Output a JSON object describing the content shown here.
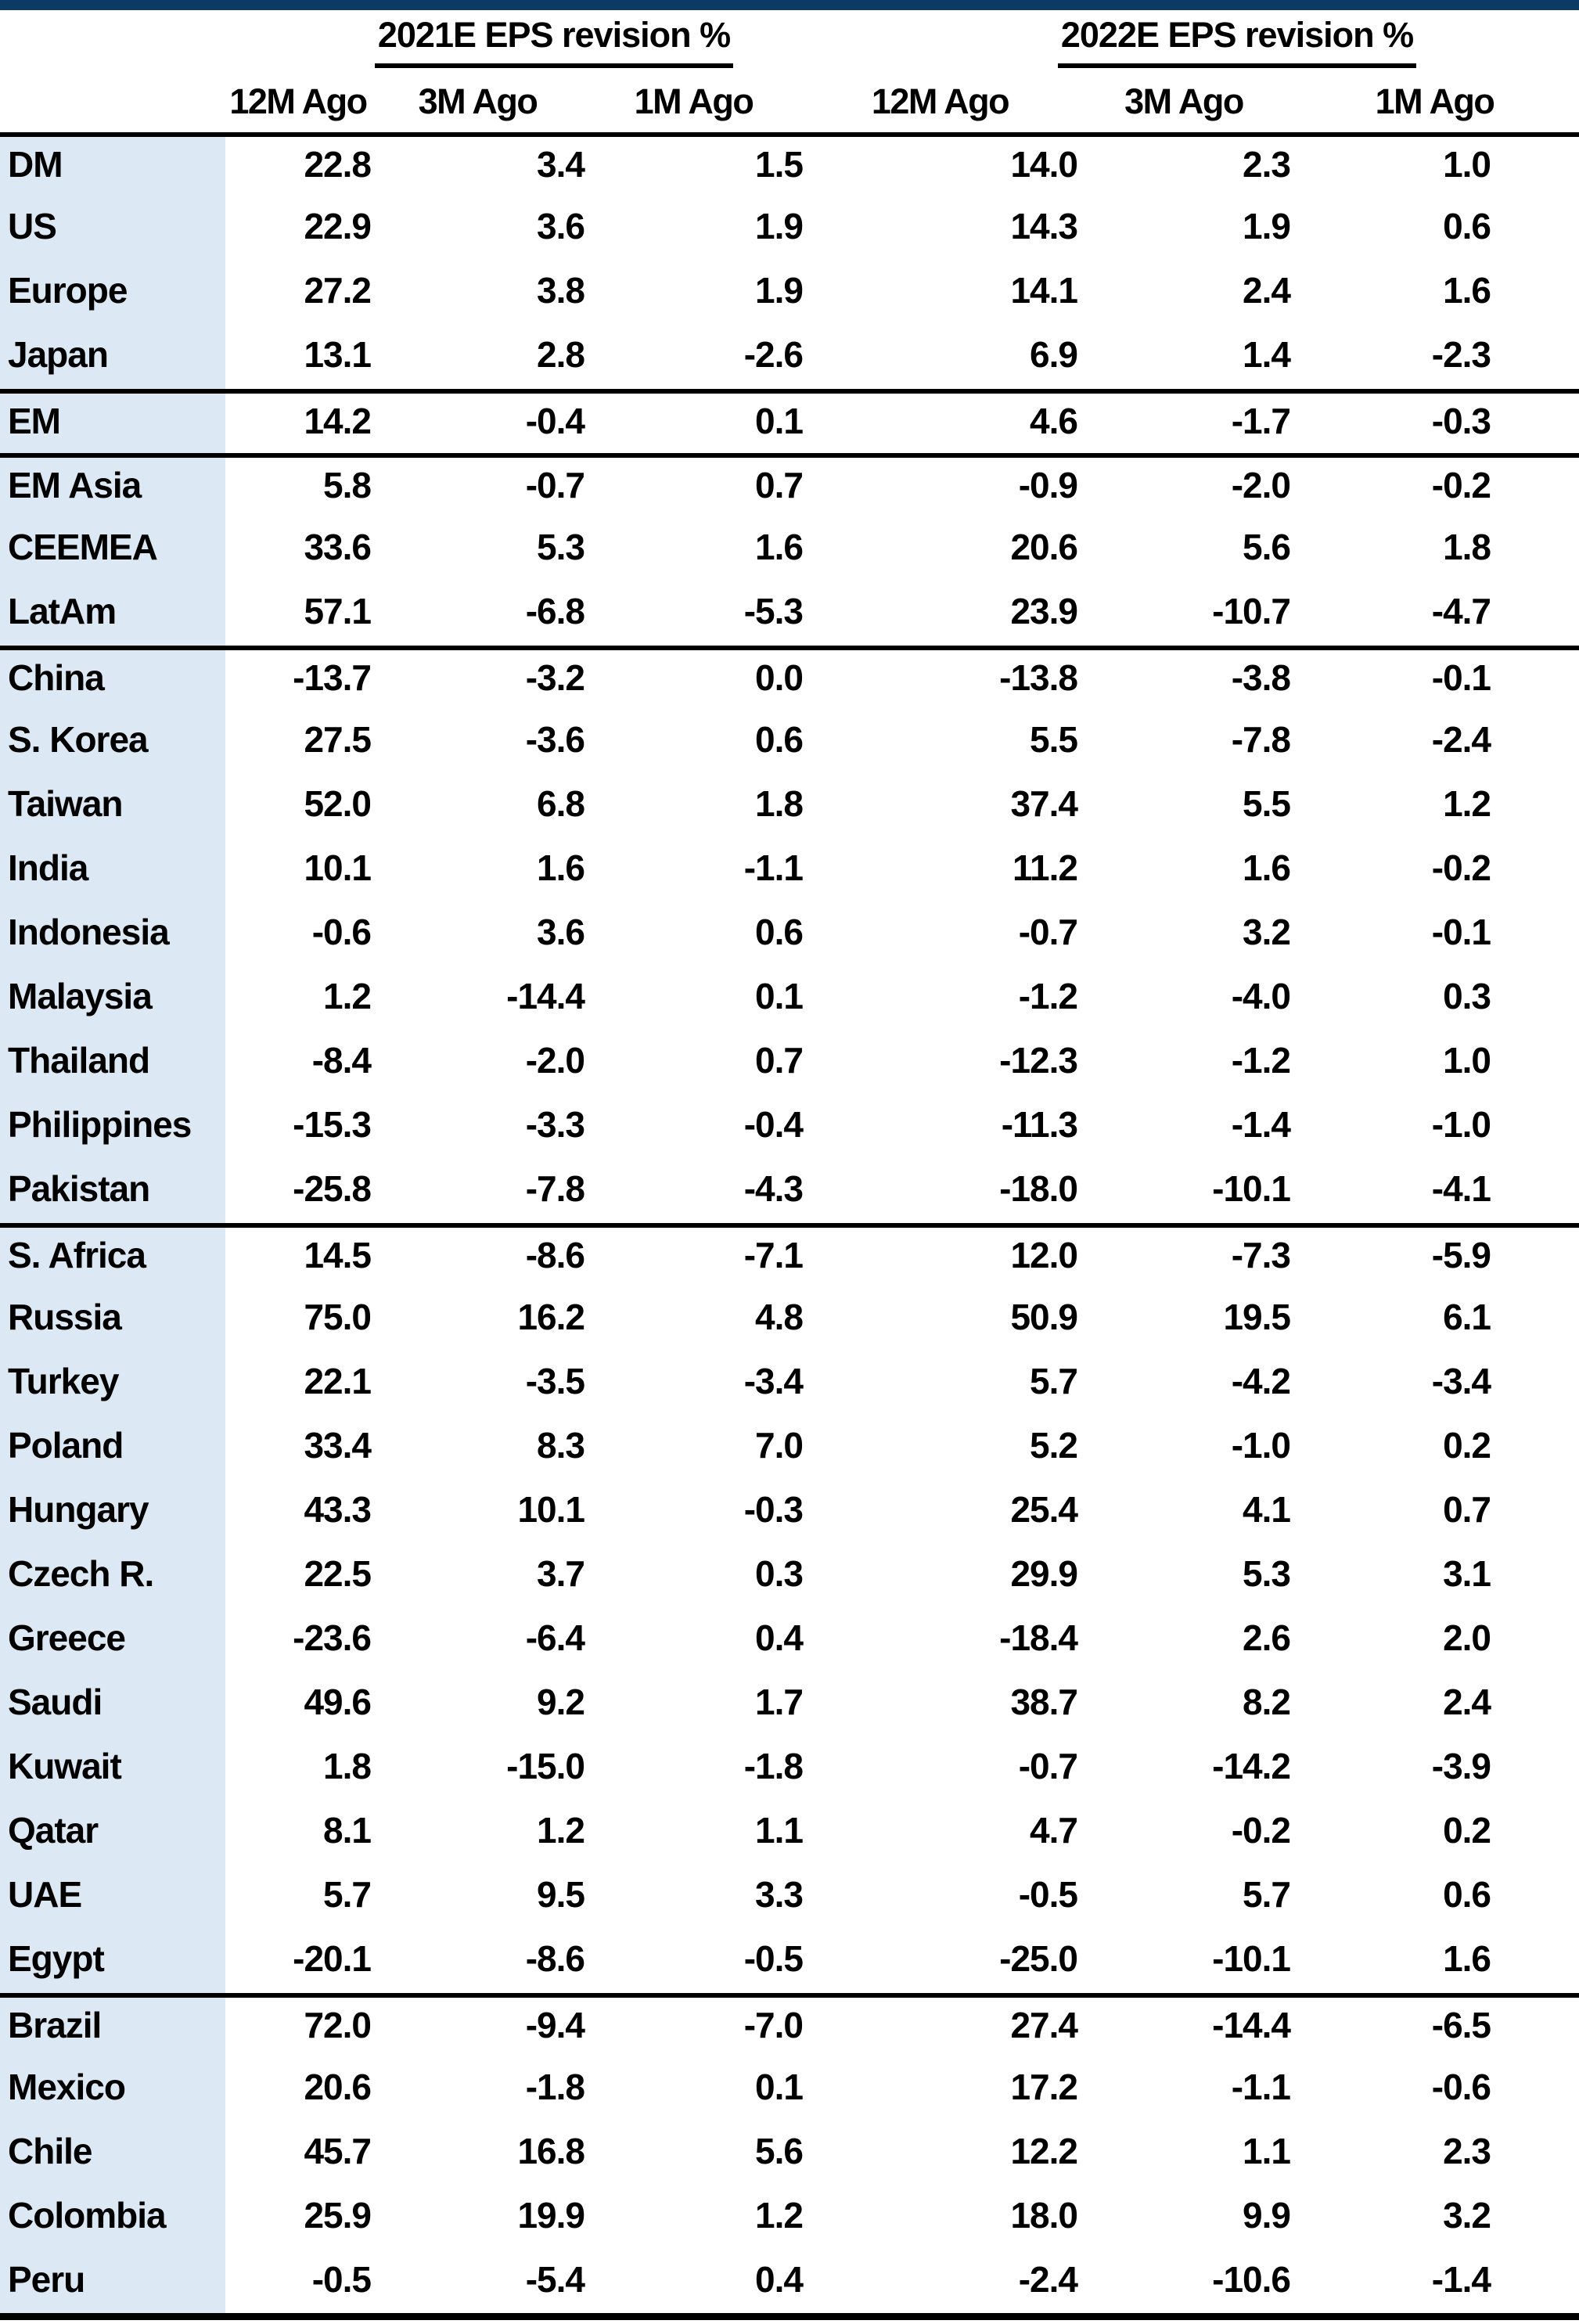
{
  "colors": {
    "top_bar": "#0b3a64",
    "label_column_bg": "#dce8f3",
    "rule_color": "#000000"
  },
  "table": {
    "group_headers": [
      {
        "label": "2021E EPS revision %"
      },
      {
        "label": "2022E EPS revision %"
      }
    ],
    "sub_headers": [
      "12M Ago",
      "3M Ago",
      "1M Ago",
      "12M Ago",
      "3M Ago",
      "1M Ago"
    ],
    "rows": [
      {
        "label": "DM",
        "values": [
          "22.8",
          "3.4",
          "1.5",
          "14.0",
          "2.3",
          "1.0"
        ],
        "sep": false
      },
      {
        "label": "US",
        "values": [
          "22.9",
          "3.6",
          "1.9",
          "14.3",
          "1.9",
          "0.6"
        ],
        "sep": false
      },
      {
        "label": "Europe",
        "values": [
          "27.2",
          "3.8",
          "1.9",
          "14.1",
          "2.4",
          "1.6"
        ],
        "sep": false
      },
      {
        "label": "Japan",
        "values": [
          "13.1",
          "2.8",
          "-2.6",
          "6.9",
          "1.4",
          "-2.3"
        ],
        "sep": true
      },
      {
        "label": "EM",
        "values": [
          "14.2",
          "-0.4",
          "0.1",
          "4.6",
          "-1.7",
          "-0.3"
        ],
        "sep": true
      },
      {
        "label": "EM Asia",
        "values": [
          "5.8",
          "-0.7",
          "0.7",
          "-0.9",
          "-2.0",
          "-0.2"
        ],
        "sep": false
      },
      {
        "label": "CEEMEA",
        "values": [
          "33.6",
          "5.3",
          "1.6",
          "20.6",
          "5.6",
          "1.8"
        ],
        "sep": false
      },
      {
        "label": "LatAm",
        "values": [
          "57.1",
          "-6.8",
          "-5.3",
          "23.9",
          "-10.7",
          "-4.7"
        ],
        "sep": true
      },
      {
        "label": "China",
        "values": [
          "-13.7",
          "-3.2",
          "0.0",
          "-13.8",
          "-3.8",
          "-0.1"
        ],
        "sep": false
      },
      {
        "label": "S. Korea",
        "values": [
          "27.5",
          "-3.6",
          "0.6",
          "5.5",
          "-7.8",
          "-2.4"
        ],
        "sep": false
      },
      {
        "label": "Taiwan",
        "values": [
          "52.0",
          "6.8",
          "1.8",
          "37.4",
          "5.5",
          "1.2"
        ],
        "sep": false
      },
      {
        "label": "India",
        "values": [
          "10.1",
          "1.6",
          "-1.1",
          "11.2",
          "1.6",
          "-0.2"
        ],
        "sep": false
      },
      {
        "label": "Indonesia",
        "values": [
          "-0.6",
          "3.6",
          "0.6",
          "-0.7",
          "3.2",
          "-0.1"
        ],
        "sep": false
      },
      {
        "label": "Malaysia",
        "values": [
          "1.2",
          "-14.4",
          "0.1",
          "-1.2",
          "-4.0",
          "0.3"
        ],
        "sep": false
      },
      {
        "label": "Thailand",
        "values": [
          "-8.4",
          "-2.0",
          "0.7",
          "-12.3",
          "-1.2",
          "1.0"
        ],
        "sep": false
      },
      {
        "label": "Philippines",
        "values": [
          "-15.3",
          "-3.3",
          "-0.4",
          "-11.3",
          "-1.4",
          "-1.0"
        ],
        "sep": false
      },
      {
        "label": "Pakistan",
        "values": [
          "-25.8",
          "-7.8",
          "-4.3",
          "-18.0",
          "-10.1",
          "-4.1"
        ],
        "sep": true
      },
      {
        "label": "S. Africa",
        "values": [
          "14.5",
          "-8.6",
          "-7.1",
          "12.0",
          "-7.3",
          "-5.9"
        ],
        "sep": false
      },
      {
        "label": "Russia",
        "values": [
          "75.0",
          "16.2",
          "4.8",
          "50.9",
          "19.5",
          "6.1"
        ],
        "sep": false
      },
      {
        "label": "Turkey",
        "values": [
          "22.1",
          "-3.5",
          "-3.4",
          "5.7",
          "-4.2",
          "-3.4"
        ],
        "sep": false
      },
      {
        "label": "Poland",
        "values": [
          "33.4",
          "8.3",
          "7.0",
          "5.2",
          "-1.0",
          "0.2"
        ],
        "sep": false
      },
      {
        "label": "Hungary",
        "values": [
          "43.3",
          "10.1",
          "-0.3",
          "25.4",
          "4.1",
          "0.7"
        ],
        "sep": false
      },
      {
        "label": "Czech R.",
        "values": [
          "22.5",
          "3.7",
          "0.3",
          "29.9",
          "5.3",
          "3.1"
        ],
        "sep": false
      },
      {
        "label": "Greece",
        "values": [
          "-23.6",
          "-6.4",
          "0.4",
          "-18.4",
          "2.6",
          "2.0"
        ],
        "sep": false
      },
      {
        "label": "Saudi",
        "values": [
          "49.6",
          "9.2",
          "1.7",
          "38.7",
          "8.2",
          "2.4"
        ],
        "sep": false
      },
      {
        "label": "Kuwait",
        "values": [
          "1.8",
          "-15.0",
          "-1.8",
          "-0.7",
          "-14.2",
          "-3.9"
        ],
        "sep": false
      },
      {
        "label": "Qatar",
        "values": [
          "8.1",
          "1.2",
          "1.1",
          "4.7",
          "-0.2",
          "0.2"
        ],
        "sep": false
      },
      {
        "label": "UAE",
        "values": [
          "5.7",
          "9.5",
          "3.3",
          "-0.5",
          "5.7",
          "0.6"
        ],
        "sep": false
      },
      {
        "label": "Egypt",
        "values": [
          "-20.1",
          "-8.6",
          "-0.5",
          "-25.0",
          "-10.1",
          "1.6"
        ],
        "sep": true
      },
      {
        "label": "Brazil",
        "values": [
          "72.0",
          "-9.4",
          "-7.0",
          "27.4",
          "-14.4",
          "-6.5"
        ],
        "sep": false
      },
      {
        "label": "Mexico",
        "values": [
          "20.6",
          "-1.8",
          "0.1",
          "17.2",
          "-1.1",
          "-0.6"
        ],
        "sep": false
      },
      {
        "label": "Chile",
        "values": [
          "45.7",
          "16.8",
          "5.6",
          "12.2",
          "1.1",
          "2.3"
        ],
        "sep": false
      },
      {
        "label": "Colombia",
        "values": [
          "25.9",
          "19.9",
          "1.2",
          "18.0",
          "9.9",
          "3.2"
        ],
        "sep": false
      },
      {
        "label": "Peru",
        "values": [
          "-0.5",
          "-5.4",
          "0.4",
          "-2.4",
          "-10.6",
          "-1.4"
        ],
        "sep": false
      }
    ]
  }
}
